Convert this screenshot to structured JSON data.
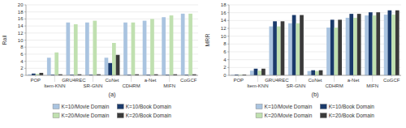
{
  "chart_data": [
    {
      "type": "bar",
      "subtitle": "(a)",
      "ylabel": "Rail",
      "categories": [
        "POP",
        "Item-KNN",
        "GRU4REC",
        "SR-GNN",
        "CoNet",
        "CDHRM",
        "a-Net",
        "MIFN",
        "CoGCF"
      ],
      "series": [
        {
          "name": "K=10/Movie Domain",
          "color": "#aac4e0",
          "values": [
            0.3,
            5.0,
            15.0,
            15.0,
            5.0,
            15.0,
            15.5,
            16.5,
            17.5
          ]
        },
        {
          "name": "K=10/Book Domain",
          "color": "#1a3a6b",
          "values": [
            0.5,
            0.2,
            0.2,
            0.2,
            3.5,
            0.2,
            0.2,
            0.2,
            0.2
          ]
        },
        {
          "name": "K=20/Movie Domain",
          "color": "#c0e0b0",
          "values": [
            0.4,
            6.5,
            14.5,
            15.5,
            9.2,
            15.0,
            16.0,
            17.0,
            17.5
          ]
        },
        {
          "name": "K=20/Book Domain",
          "color": "#3a3a3a",
          "values": [
            0.7,
            0.3,
            0.3,
            0.3,
            5.8,
            0.3,
            0.3,
            0.3,
            0.3
          ]
        }
      ],
      "ylim": [
        0,
        20
      ],
      "yticks": [
        0,
        2,
        4,
        6,
        8,
        10,
        12,
        14,
        16,
        18,
        20
      ],
      "grid": true,
      "legend": "bottom"
    },
    {
      "type": "bar",
      "subtitle": "(b)",
      "ylabel": "MRR",
      "categories": [
        "POP",
        "Item-KNN",
        "GRU4REC",
        "SR-GNN",
        "CoNet",
        "CDHRM",
        "a-Net",
        "MIFN",
        "CoGCF"
      ],
      "series": [
        {
          "name": "K=10/Movie Domain",
          "color": "#aac4e0",
          "values": [
            0.15,
            1.2,
            12.5,
            13.3,
            1.1,
            12.2,
            14.7,
            15.3,
            15.5
          ]
        },
        {
          "name": "K=10/Book Domain",
          "color": "#1a3a6b",
          "values": [
            0.2,
            1.7,
            13.8,
            15.4,
            1.3,
            14.2,
            15.7,
            16.1,
            16.6
          ]
        },
        {
          "name": "K=20/Movie Domain",
          "color": "#c0e0b0",
          "values": [
            0.15,
            1.2,
            12.5,
            13.3,
            1.1,
            12.2,
            14.7,
            15.3,
            15.5
          ]
        },
        {
          "name": "K=20/Book Domain",
          "color": "#3a3a3a",
          "values": [
            0.2,
            1.7,
            13.8,
            15.4,
            1.3,
            14.2,
            15.7,
            16.1,
            16.6
          ]
        }
      ],
      "ylim": [
        0,
        18
      ],
      "yticks": [
        0,
        2,
        4,
        6,
        8,
        10,
        12,
        14,
        16,
        18
      ],
      "grid": true,
      "legend": "bottom"
    }
  ]
}
